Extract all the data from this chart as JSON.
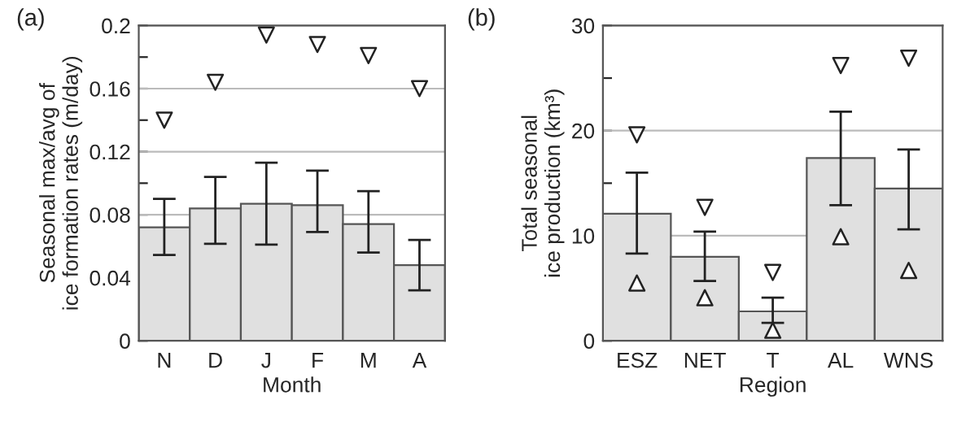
{
  "chart_data": [
    {
      "type": "bar",
      "title": "(a)",
      "xlabel": "Month",
      "ylabel": "Seasonal max/avg of\nice formation rates (m/day)",
      "categories": [
        "N",
        "D",
        "J",
        "F",
        "M",
        "A"
      ],
      "ylim": [
        0,
        0.2
      ],
      "yticks": [
        0,
        {
          "value": 0.02,
          "label": null
        },
        0.04,
        {
          "value": 0.06,
          "label": null
        },
        0.08,
        {
          "value": 0.1,
          "label": null
        },
        0.12,
        {
          "value": 0.14,
          "label": null
        },
        0.16,
        {
          "value": 0.18,
          "label": null
        },
        0.2
      ],
      "grid": "y",
      "series": [
        {
          "color": "#e0e0e0",
          "values": [
            0.072,
            0.084,
            0.087,
            0.086,
            0.074,
            0.048
          ],
          "errors": [
            [
              0.0545,
              0.09
            ],
            [
              0.0615,
              0.104
            ],
            [
              0.061,
              0.113
            ],
            [
              0.069,
              0.108
            ],
            [
              0.056,
              0.095
            ],
            [
              0.032,
              0.064
            ]
          ]
        },
        {
          "type": "scatter",
          "marker": "triangle_down",
          "color": "#ffffff",
          "values": [
            0.14,
            0.164,
            0.194,
            0.188,
            0.181,
            0.16
          ]
        }
      ]
    },
    {
      "type": "bar",
      "title": "(b)",
      "xlabel": "Region",
      "ylabel": "Total seasonal\nice production (km³)",
      "categories": [
        "ESZ",
        "NET",
        "T",
        "AL",
        "WNS"
      ],
      "ylim": [
        0,
        30
      ],
      "yticks": [
        0,
        {
          "value": 5,
          "label": null
        },
        10,
        {
          "value": 15,
          "label": null
        },
        20,
        {
          "value": 25,
          "label": null
        },
        30
      ],
      "grid": "y",
      "series": [
        {
          "color": "#e0e0e0",
          "values": [
            12.1,
            8.0,
            2.8,
            17.4,
            14.5
          ],
          "errors": [
            [
              8.3,
              16.0
            ],
            [
              5.7,
              10.4
            ],
            [
              1.7,
              4.1
            ],
            [
              12.9,
              21.8
            ],
            [
              10.6,
              18.2
            ]
          ]
        },
        {
          "type": "scatter",
          "marker": "triangle_down",
          "color": "#ffffff",
          "values": [
            19.6,
            12.7,
            6.5,
            26.2,
            26.9
          ]
        },
        {
          "type": "scatter",
          "marker": "triangle",
          "color": "#ffffff",
          "values": [
            5.5,
            4.1,
            1.0,
            9.9,
            6.7
          ]
        }
      ]
    }
  ]
}
